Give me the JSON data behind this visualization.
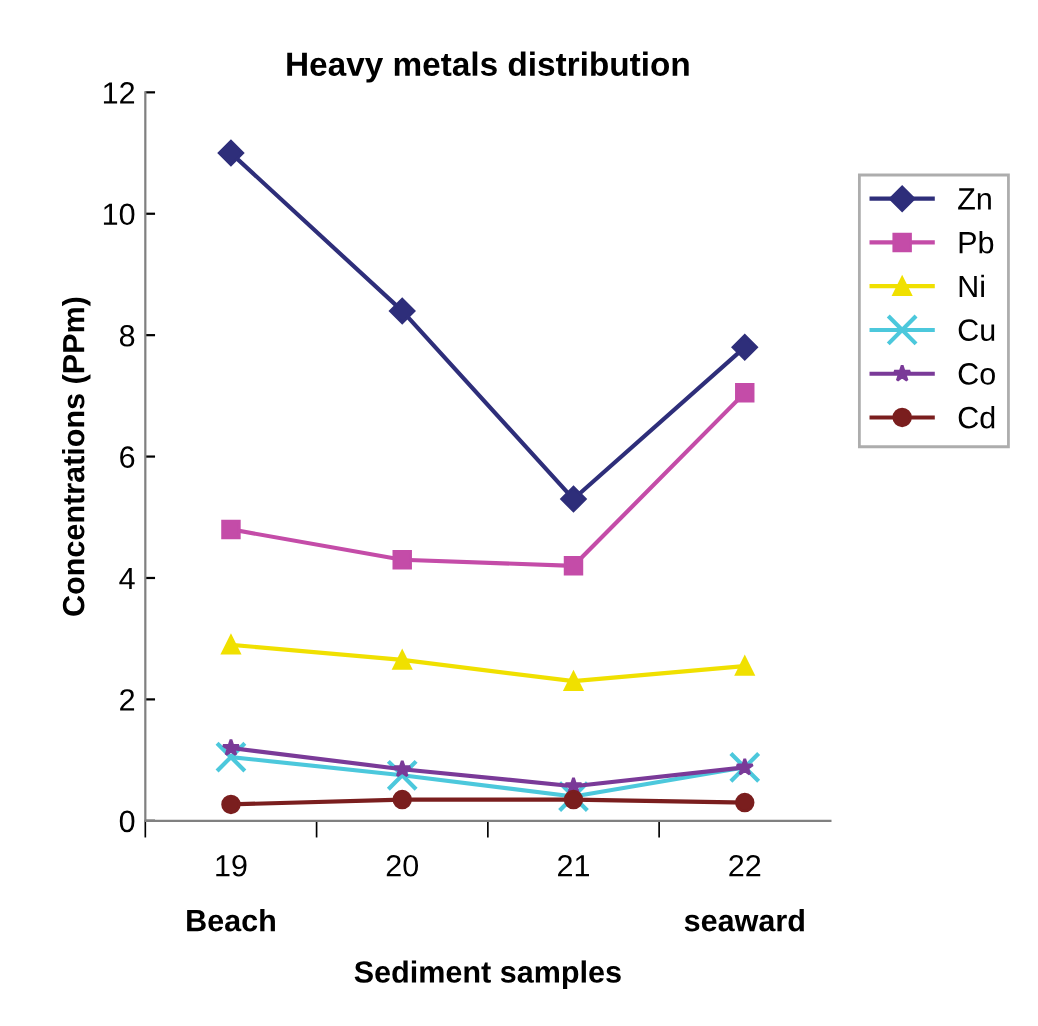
{
  "chart_data": {
    "type": "line",
    "title": "Heavy metals distribution",
    "xlabel": "Sediment samples",
    "ylabel": "Concentrations (PPm)",
    "categories": [
      "19",
      "20",
      "21",
      "22"
    ],
    "ylim": [
      0,
      12
    ],
    "yticks": [
      0,
      2,
      4,
      6,
      8,
      10,
      12
    ],
    "grid": false,
    "legend": "right",
    "annotations": [
      "Beach",
      "seaward"
    ],
    "series": [
      {
        "name": "Zn",
        "color": "#2e2e7a",
        "marker": "diamond",
        "values": [
          11.0,
          8.4,
          5.3,
          7.8
        ]
      },
      {
        "name": "Pb",
        "color": "#c44ca8",
        "marker": "square",
        "values": [
          4.8,
          4.3,
          4.2,
          7.05
        ]
      },
      {
        "name": "Ni",
        "color": "#f0e000",
        "marker": "triangle",
        "values": [
          2.9,
          2.65,
          2.3,
          2.55
        ]
      },
      {
        "name": "Cu",
        "color": "#4cc8dc",
        "marker": "cross",
        "values": [
          1.05,
          0.75,
          0.4,
          0.88
        ]
      },
      {
        "name": "Co",
        "color": "#7a3a98",
        "marker": "star",
        "values": [
          1.2,
          0.85,
          0.57,
          0.88
        ]
      },
      {
        "name": "Cd",
        "color": "#7a1e1e",
        "marker": "circle",
        "values": [
          0.27,
          0.35,
          0.35,
          0.3
        ]
      }
    ]
  }
}
